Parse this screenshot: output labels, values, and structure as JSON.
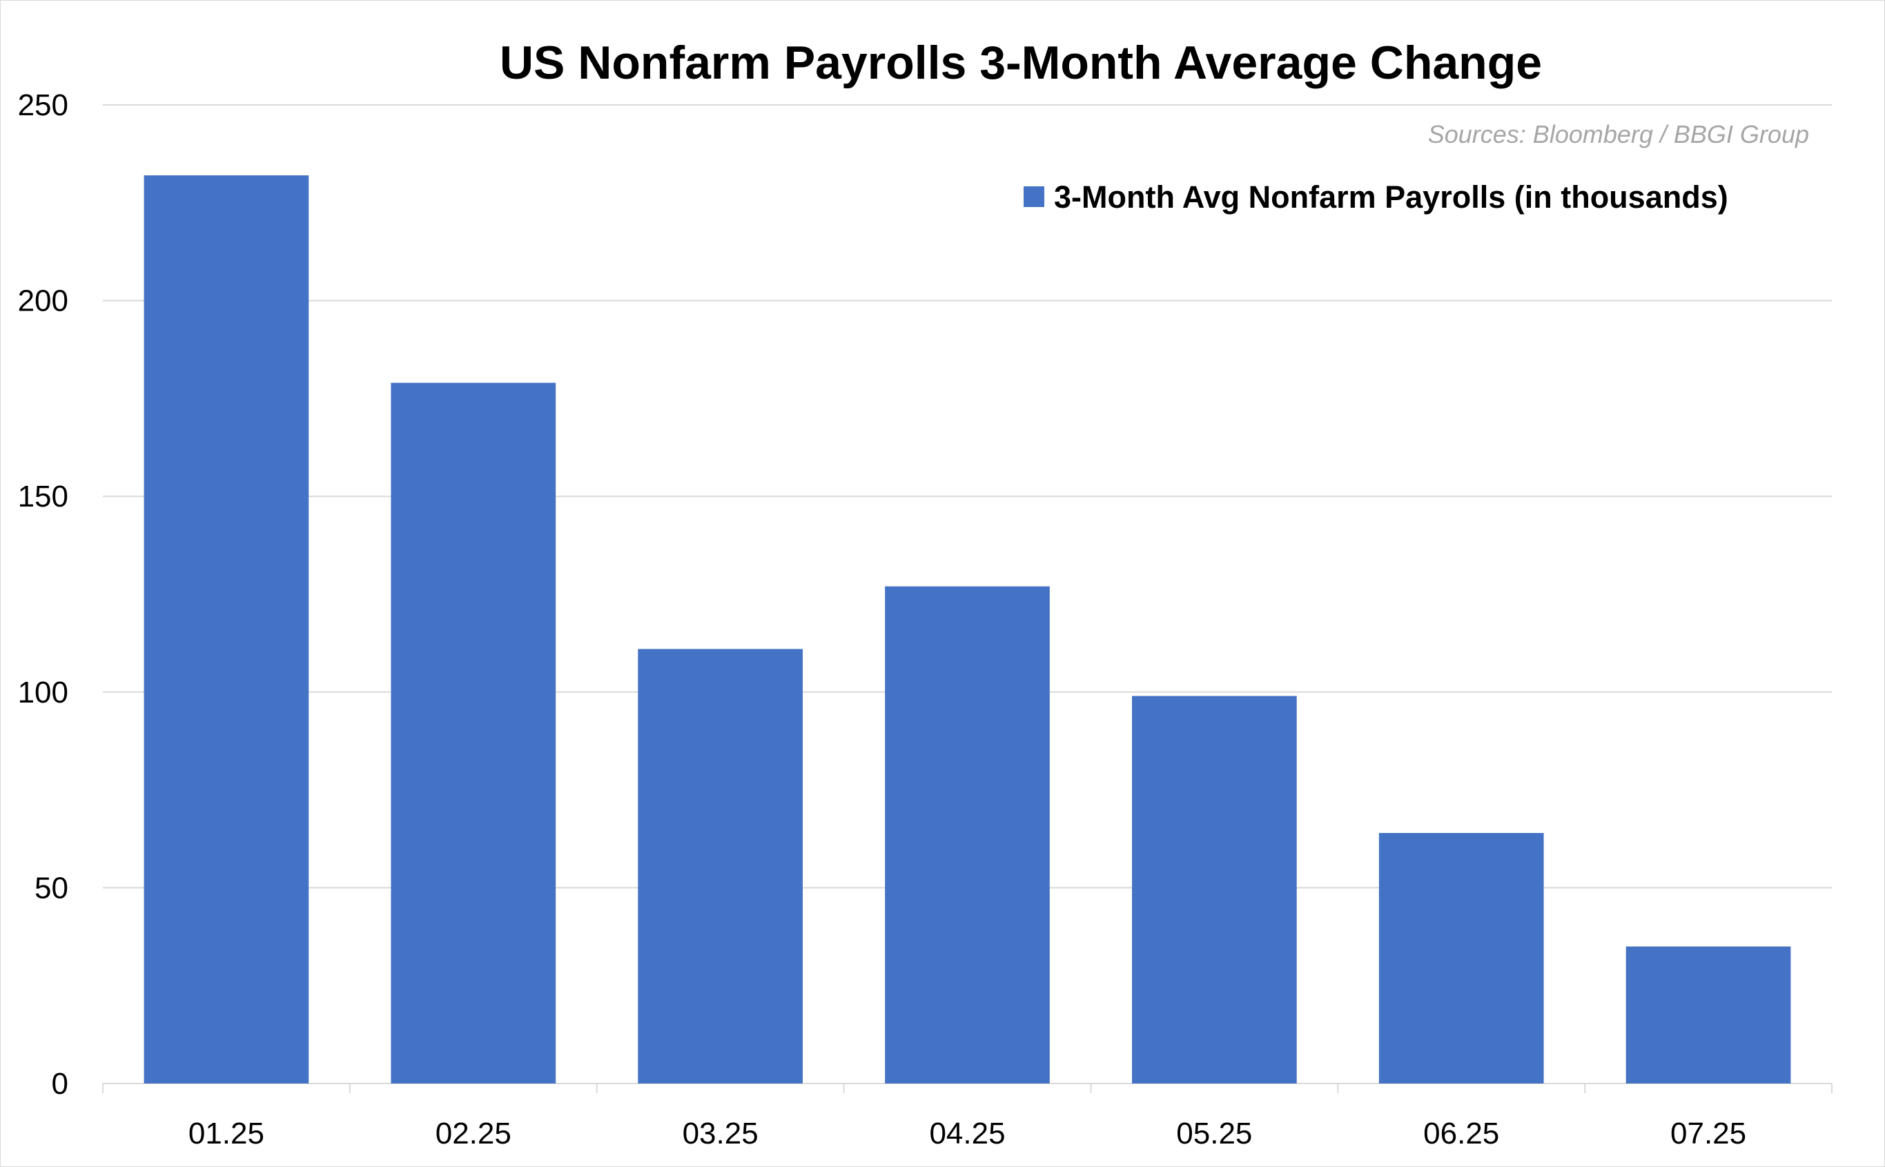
{
  "chart_data": {
    "type": "bar",
    "title": "US Nonfarm Payrolls 3-Month Average Change",
    "source": "Sources: Bloomberg / BBGI Group",
    "categories": [
      "01.25",
      "02.25",
      "03.25",
      "04.25",
      "05.25",
      "06.25",
      "07.25"
    ],
    "series": [
      {
        "name": "3-Month Avg Nonfarm Payrolls (in thousands)",
        "color": "#4472C4",
        "values": [
          232,
          179,
          111,
          127,
          99,
          64,
          35
        ]
      }
    ],
    "yticks": [
      0,
      50,
      100,
      150,
      200,
      250
    ],
    "ylim": [
      0,
      250
    ],
    "grid": true,
    "legend_position": "top-right"
  }
}
